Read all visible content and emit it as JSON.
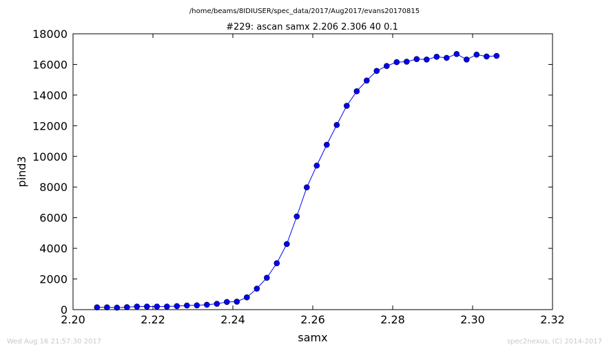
{
  "chart_data": {
    "type": "line",
    "suptitle": "/home/beams/8IDIUSER/spec_data/2017/Aug2017/evans20170815",
    "title": "#229: ascan  samx 2.206 2.306  40 0.1",
    "xlabel": "samx",
    "ylabel": "pind3",
    "xlim": [
      2.2,
      2.32
    ],
    "ylim": [
      0,
      18000
    ],
    "xticks": [
      "2.20",
      "2.22",
      "2.24",
      "2.26",
      "2.28",
      "2.30",
      "2.32"
    ],
    "yticks": [
      "0",
      "2000",
      "4000",
      "6000",
      "8000",
      "10000",
      "12000",
      "14000",
      "16000",
      "18000"
    ],
    "xtick_values": [
      2.2,
      2.22,
      2.24,
      2.26,
      2.28,
      2.3,
      2.32
    ],
    "ytick_values": [
      0,
      2000,
      4000,
      6000,
      8000,
      10000,
      12000,
      14000,
      16000,
      18000
    ],
    "grid": false,
    "color": "#0000ff",
    "series": [
      {
        "x": [
          2.206,
          2.2085,
          2.211,
          2.2135,
          2.216,
          2.2185,
          2.221,
          2.2235,
          2.226,
          2.2285,
          2.231,
          2.2335,
          2.236,
          2.2385,
          2.241,
          2.2435,
          2.246,
          2.2485,
          2.251,
          2.2535,
          2.256,
          2.2585,
          2.261,
          2.2635,
          2.266,
          2.2685,
          2.271,
          2.2735,
          2.276,
          2.2785,
          2.281,
          2.2835,
          2.286,
          2.2885,
          2.291,
          2.2935,
          2.296,
          2.2985,
          2.301,
          2.3035,
          2.306
        ],
        "y": [
          150,
          150,
          130,
          160,
          200,
          200,
          200,
          200,
          230,
          270,
          280,
          320,
          380,
          500,
          520,
          800,
          1370,
          2080,
          3030,
          4280,
          6080,
          7980,
          9400,
          10760,
          12050,
          13300,
          14250,
          14950,
          15580,
          15900,
          16150,
          16180,
          16350,
          16320,
          16500,
          16430,
          16680,
          16320,
          16640,
          16520,
          16560
        ]
      }
    ]
  },
  "footer": {
    "timestamp": "Wed Aug 16 21:57:30 2017",
    "credit": "spec2nexus, (C) 2014-2017"
  }
}
